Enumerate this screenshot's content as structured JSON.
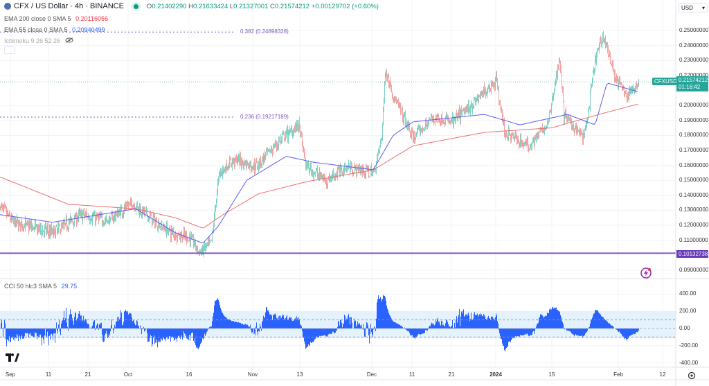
{
  "header": {
    "symbol_title": "CFX / US Dollar · 4h · BINANCE",
    "ohlc": {
      "o_label": "O",
      "o": "0.21402290",
      "h_label": "H",
      "h": "0.21633424",
      "l_label": "L",
      "l": "0.21327001",
      "c_label": "C",
      "c": "0.21574212",
      "change": "+0.00129702 (+0.60%)"
    },
    "indicators": [
      {
        "label": "EMA 200 close 0 SMA 5",
        "value": "0.20116056",
        "color": "#f23645"
      },
      {
        "label": "EMA 55 close 0 SMA 5",
        "value": "0.20940499",
        "color": "#2962ff"
      },
      {
        "label": "Ichimoku 9 26 52 26",
        "icon": "eye-crossed-icon"
      }
    ]
  },
  "price_axis": {
    "currency": "USD",
    "ticks": [
      "0.25000000",
      "0.24000000",
      "0.23000000",
      "0.22000000",
      "0.20000000",
      "0.19000000",
      "0.18000000",
      "0.17000000",
      "0.16000000",
      "0.15000000",
      "0.14000000",
      "0.13000000",
      "0.12000000",
      "0.11000000",
      "0.09000000"
    ],
    "symbol_badge": "CFXUSD",
    "last_price": "0.21574212",
    "countdown": "01:16:42",
    "hline_price": "0.10132738"
  },
  "fib_levels": [
    {
      "label": "0.382 (0.24898328)",
      "price": 0.24898328
    },
    {
      "label": "0.236 (0.19217189)",
      "price": 0.19217189
    }
  ],
  "cci": {
    "label": "CCI 50 hlc3 SMA 5",
    "value": "29.75",
    "ticks": [
      "400.00",
      "200.00",
      "0.00",
      "-200.00",
      "-400.00"
    ],
    "band": [
      100,
      -100
    ]
  },
  "time_axis": [
    "Sep",
    "11",
    "21",
    "Oct",
    "16",
    "Nov",
    "13",
    "Dec",
    "11",
    "21",
    "2024",
    "15",
    "Feb",
    "12"
  ],
  "colors": {
    "up": "#7fd1c4",
    "down": "#f5a3a3",
    "ema200": "#f26d6d",
    "ema55": "#5b5bf0",
    "hline": "#7e57c2",
    "cci": "#2962ff",
    "last": "#26a69a"
  },
  "chart_data": {
    "type": "candlestick",
    "timeframe": "4h",
    "ylim": [
      0.085,
      0.252
    ],
    "close_path": [
      [
        "2023-08-30",
        0.132
      ],
      [
        "2023-09-02",
        0.122
      ],
      [
        "2023-09-12",
        0.115
      ],
      [
        "2023-09-19",
        0.127
      ],
      [
        "2023-09-26",
        0.123
      ],
      [
        "2023-10-02",
        0.135
      ],
      [
        "2023-10-08",
        0.122
      ],
      [
        "2023-10-12",
        0.115
      ],
      [
        "2023-10-17",
        0.111
      ],
      [
        "2023-10-19",
        0.1015
      ],
      [
        "2023-10-22",
        0.108
      ],
      [
        "2023-10-24",
        0.155
      ],
      [
        "2023-10-28",
        0.164
      ],
      [
        "2023-11-02",
        0.159
      ],
      [
        "2023-11-09",
        0.178
      ],
      [
        "2023-11-13",
        0.187
      ],
      [
        "2023-11-15",
        0.159
      ],
      [
        "2023-11-20",
        0.15
      ],
      [
        "2023-11-25",
        0.159
      ],
      [
        "2023-12-02",
        0.155
      ],
      [
        "2023-12-04",
        0.178
      ],
      [
        "2023-12-05",
        0.224
      ],
      [
        "2023-12-07",
        0.206
      ],
      [
        "2023-12-12",
        0.178
      ],
      [
        "2023-12-17",
        0.192
      ],
      [
        "2023-12-22",
        0.189
      ],
      [
        "2023-12-27",
        0.201
      ],
      [
        "2024-01-02",
        0.217
      ],
      [
        "2024-01-04",
        0.182
      ],
      [
        "2024-01-10",
        0.173
      ],
      [
        "2024-01-15",
        0.187
      ],
      [
        "2024-01-18",
        0.233
      ],
      [
        "2024-01-19",
        0.194
      ],
      [
        "2024-01-24",
        0.178
      ],
      [
        "2024-01-25",
        0.192
      ],
      [
        "2024-01-27",
        0.231
      ],
      [
        "2024-01-29",
        0.247
      ],
      [
        "2024-02-01",
        0.219
      ],
      [
        "2024-02-04",
        0.206
      ],
      [
        "2024-02-07",
        0.2157
      ]
    ],
    "series": [
      {
        "name": "EMA 200",
        "values": [
          [
            "2023-08-30",
            0.152
          ],
          [
            "2023-09-16",
            0.134
          ],
          [
            "2023-10-03",
            0.131
          ],
          [
            "2023-10-13",
            0.125
          ],
          [
            "2023-10-20",
            0.118
          ],
          [
            "2023-10-25",
            0.127
          ],
          [
            "2023-11-03",
            0.141
          ],
          [
            "2023-11-15",
            0.149
          ],
          [
            "2023-12-02",
            0.157
          ],
          [
            "2023-12-12",
            0.173
          ],
          [
            "2023-12-30",
            0.182
          ],
          [
            "2024-01-16",
            0.185
          ],
          [
            "2024-01-28",
            0.194
          ],
          [
            "2024-02-07",
            0.201
          ]
        ]
      },
      {
        "name": "EMA 55",
        "values": [
          [
            "2023-08-30",
            0.127
          ],
          [
            "2023-09-12",
            0.122
          ],
          [
            "2023-10-03",
            0.131
          ],
          [
            "2023-10-13",
            0.115
          ],
          [
            "2023-10-20",
            0.108
          ],
          [
            "2023-10-24",
            0.12
          ],
          [
            "2023-10-31",
            0.15
          ],
          [
            "2023-11-10",
            0.166
          ],
          [
            "2023-11-17",
            0.162
          ],
          [
            "2023-12-02",
            0.157
          ],
          [
            "2023-12-07",
            0.18
          ],
          [
            "2023-12-12",
            0.189
          ],
          [
            "2023-12-30",
            0.194
          ],
          [
            "2024-01-08",
            0.187
          ],
          [
            "2024-01-20",
            0.194
          ],
          [
            "2024-01-27",
            0.187
          ],
          [
            "2024-01-30",
            0.215
          ],
          [
            "2024-02-07",
            0.209
          ]
        ]
      }
    ]
  }
}
